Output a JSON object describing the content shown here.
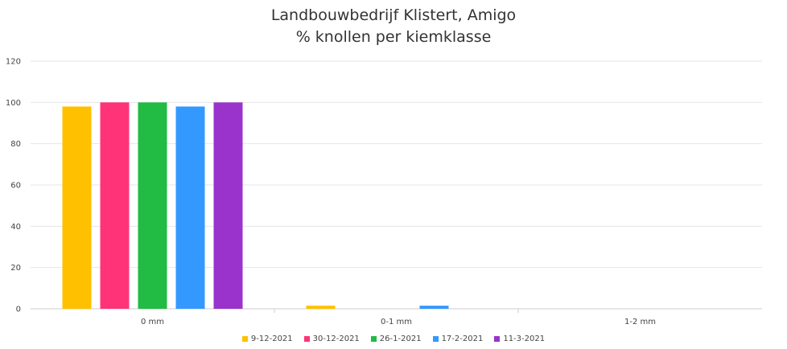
{
  "chart_data": {
    "type": "bar",
    "title": "Landbouwbedrijf Klistert, Amigo",
    "subtitle": "% knollen per kiemklasse",
    "categories": [
      "0 mm",
      "0-1 mm",
      "1-2 mm"
    ],
    "series": [
      {
        "name": "9-12-2021",
        "color": "#FFC000",
        "values": [
          98,
          1.5,
          0
        ]
      },
      {
        "name": "30-12-2021",
        "color": "#FF3377",
        "values": [
          100,
          0,
          0
        ]
      },
      {
        "name": "26-1-2021",
        "color": "#22BB44",
        "values": [
          100,
          0,
          0
        ]
      },
      {
        "name": "17-2-2021",
        "color": "#3399FF",
        "values": [
          98,
          1.5,
          0
        ]
      },
      {
        "name": "11-3-2021",
        "color": "#9933CC",
        "values": [
          100,
          0,
          0
        ]
      }
    ],
    "yticks": [
      "0",
      "20",
      "40",
      "60",
      "80",
      "100",
      "120"
    ],
    "ylim": [
      0,
      120
    ],
    "grid": true,
    "legend_position": "bottom"
  }
}
